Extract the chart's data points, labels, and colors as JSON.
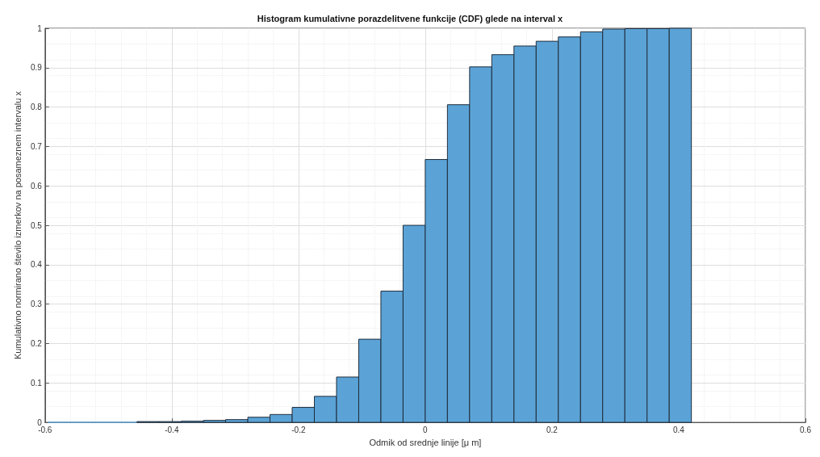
{
  "chart_data": {
    "type": "histogram",
    "title": "Histogram kumulativne porazdelitvene funkcije (CDF) glede na interval x",
    "xlabel": "Odmik od srednje linije [μ m]",
    "ylabel": "Kumulativno normirano število izmerkov na posameznem intervalu x",
    "bins": [
      -0.595,
      -0.56,
      -0.525,
      -0.49,
      -0.455,
      -0.42,
      -0.385,
      -0.35,
      -0.315,
      -0.28,
      -0.245,
      -0.21,
      -0.175,
      -0.14,
      -0.105,
      -0.07,
      -0.035,
      0,
      0.035,
      0.07,
      0.105,
      0.14,
      0.175,
      0.21,
      0.245,
      0.28,
      0.315,
      0.35,
      0.385,
      0.42
    ],
    "values": [
      0,
      0,
      0,
      0,
      0.002,
      0.002,
      0.003,
      0.005,
      0.007,
      0.013,
      0.02,
      0.038,
      0.066,
      0.115,
      0.211,
      0.333,
      0.5,
      0.667,
      0.806,
      0.902,
      0.933,
      0.955,
      0.967,
      0.978,
      0.991,
      0.998,
      0.999,
      0.999,
      1.0
    ],
    "color": "#5ba3d6",
    "xlim": [
      -0.6,
      0.6
    ],
    "xticks": [
      -0.6,
      -0.4,
      -0.2,
      0,
      0.2,
      0.4,
      0.6
    ],
    "ylim": [
      0,
      1
    ],
    "yticks": [
      0,
      0.1,
      0.2,
      0.3,
      0.4,
      0.5,
      0.6,
      0.7,
      0.8,
      0.9,
      1
    ],
    "grid": true
  }
}
